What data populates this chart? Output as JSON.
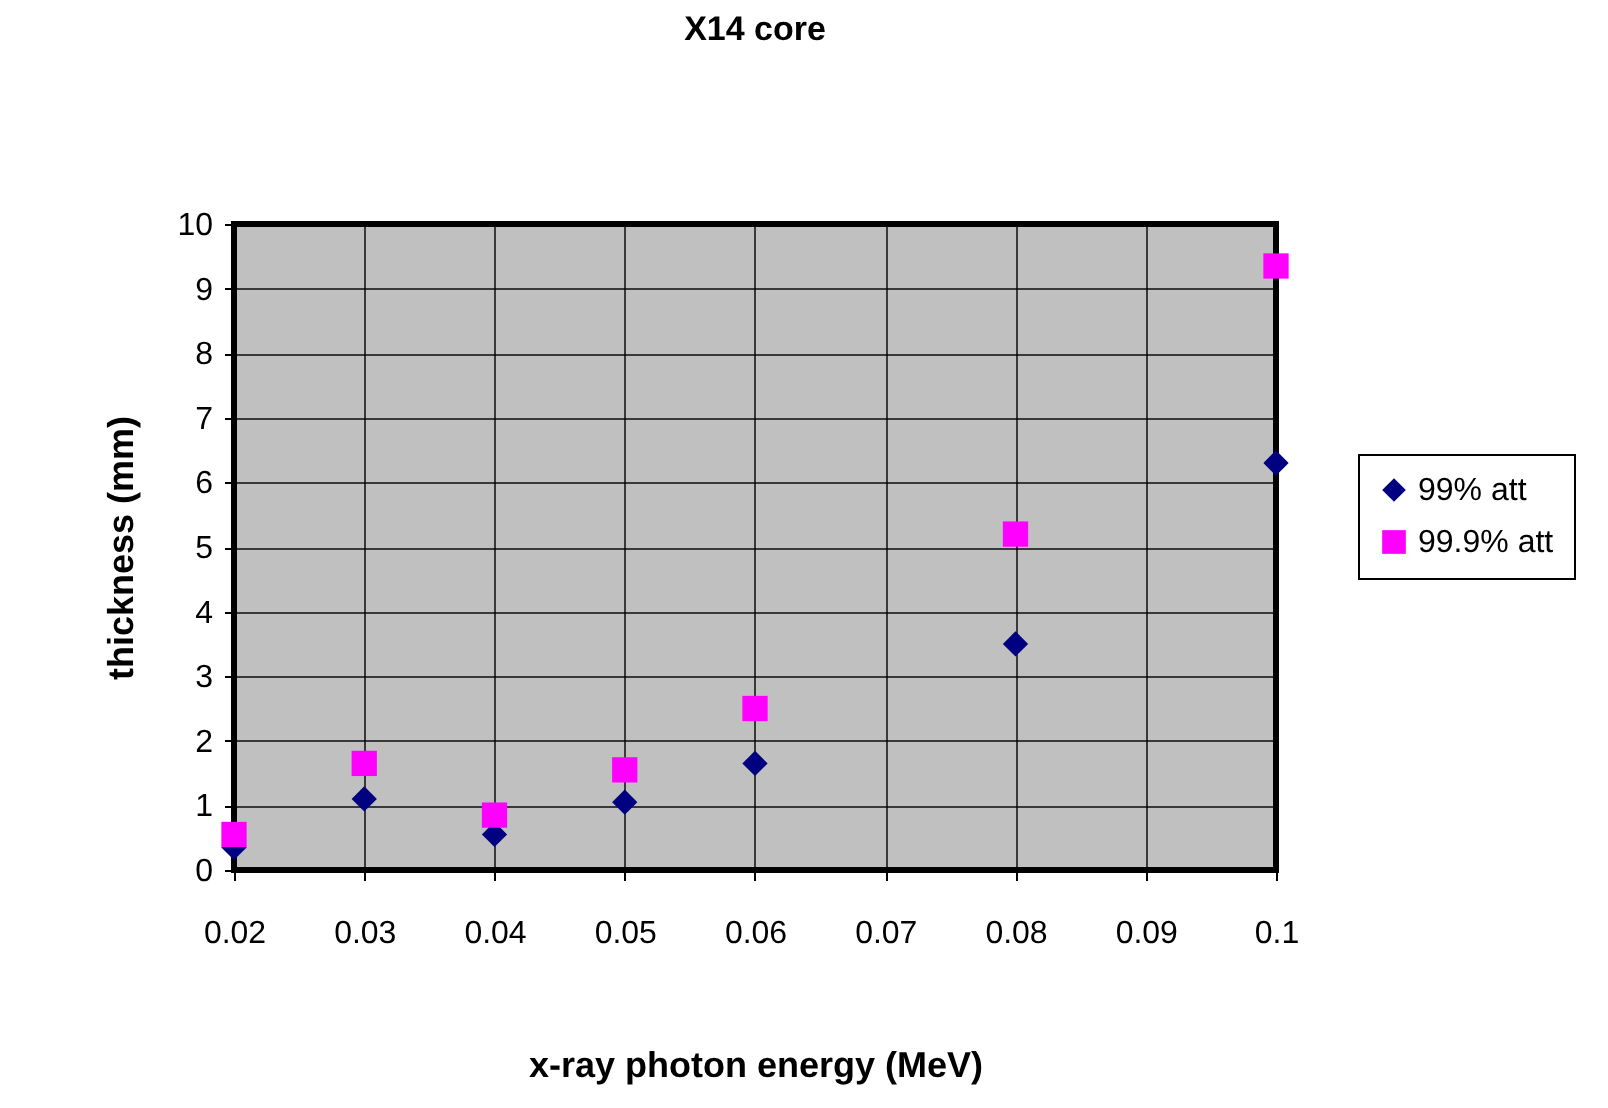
{
  "chart_data": {
    "type": "scatter",
    "title": "X14 core",
    "xlabel": "x-ray photon energy (MeV)",
    "ylabel": "thickness (mm)",
    "x": [
      0.02,
      0.03,
      0.04,
      0.05,
      0.06,
      0.08,
      0.1
    ],
    "series": [
      {
        "name": "99% att",
        "color": "#000080",
        "marker": "diamond",
        "values": [
          0.35,
          1.1,
          0.55,
          1.05,
          1.65,
          3.5,
          6.3
        ]
      },
      {
        "name": "99.9% att",
        "color": "#ff00ff",
        "marker": "square",
        "values": [
          0.55,
          1.65,
          0.85,
          1.55,
          2.5,
          5.2,
          9.35
        ]
      }
    ],
    "xlim": [
      0.02,
      0.1
    ],
    "xticks": [
      0.02,
      0.03,
      0.04,
      0.05,
      0.06,
      0.07,
      0.08,
      0.09,
      0.1
    ],
    "ylim": [
      0,
      10
    ],
    "yticks": [
      0,
      1,
      2,
      3,
      4,
      5,
      6,
      7,
      8,
      9,
      10
    ],
    "grid": true,
    "legend": "right"
  }
}
